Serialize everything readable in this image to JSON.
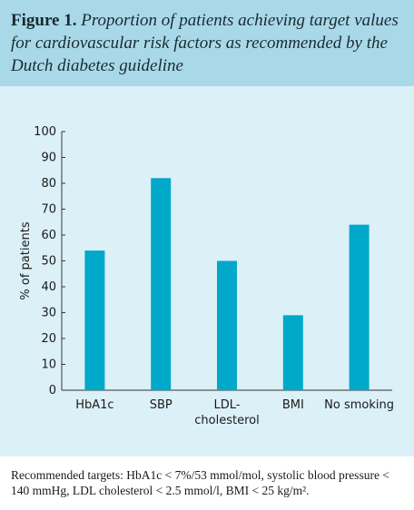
{
  "chart_data": {
    "type": "bar",
    "figure_label": "Figure 1.",
    "title": "Proportion of patients achieving target values for cardiovascular risk factors as recommended by the Dutch diabetes guideline",
    "y_label": "% of patients",
    "categories": [
      "HbA1c",
      "SBP",
      "LDL-cholesterol",
      "BMI",
      "No smoking"
    ],
    "values": [
      54,
      82,
      50,
      29,
      64
    ],
    "color": "#00a9c9",
    "ylim": [
      0,
      100
    ],
    "yticks": [
      0,
      10,
      20,
      30,
      40,
      50,
      60,
      70,
      80,
      90,
      100
    ],
    "grid": false,
    "footnote": "Recommended targets: HbA1c < 7%/53 mmol/mol, systolic blood pressure < 140 mmHg, LDL cholesterol < 2.5 mmol/l, BMI < 25 kg/m²."
  }
}
